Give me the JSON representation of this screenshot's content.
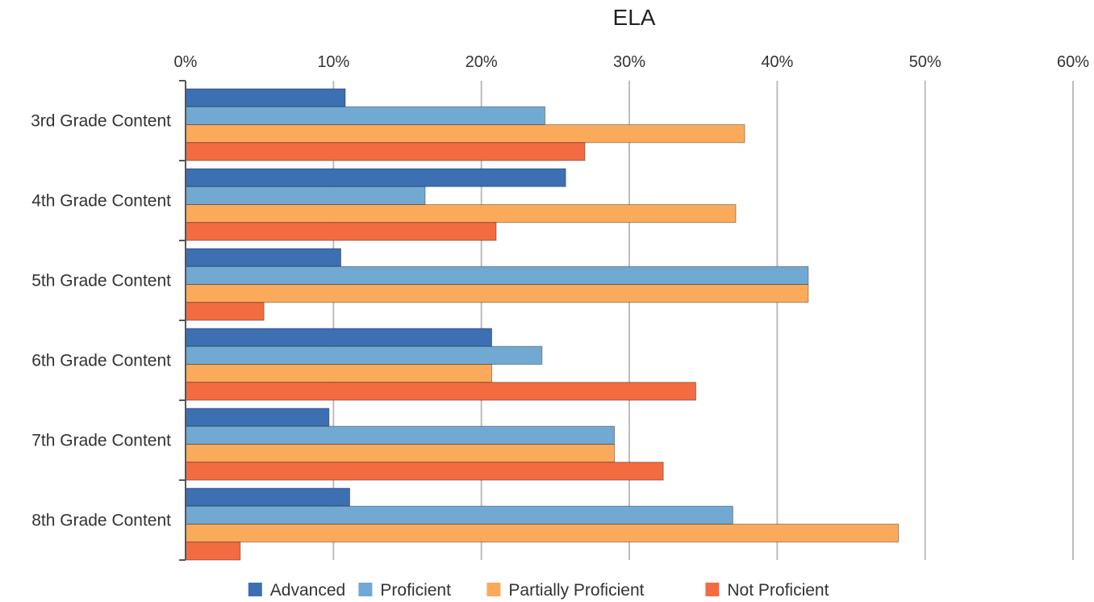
{
  "chart_data": {
    "type": "bar",
    "orientation": "horizontal",
    "title": "ELA",
    "xlabel": "",
    "ylabel": "",
    "xlim": [
      0,
      60
    ],
    "x_ticks": [
      "0%",
      "10%",
      "20%",
      "30%",
      "40%",
      "50%",
      "60%"
    ],
    "grid": true,
    "legend_position": "bottom",
    "categories": [
      "3rd Grade Content",
      "4th Grade Content",
      "5th Grade Content",
      "6th Grade Content",
      "7th Grade Content",
      "8th Grade Content"
    ],
    "series": [
      {
        "name": "Advanced",
        "color": "#3d6fb3",
        "values": [
          10.8,
          25.7,
          10.5,
          20.7,
          9.7,
          11.1
        ]
      },
      {
        "name": "Proficient",
        "color": "#71a9d3",
        "values": [
          24.3,
          16.2,
          42.1,
          24.1,
          29.0,
          37.0
        ]
      },
      {
        "name": "Partially Proficient",
        "color": "#fbaa5c",
        "values": [
          37.8,
          37.2,
          42.1,
          20.7,
          29.0,
          48.2
        ]
      },
      {
        "name": "Not Proficient",
        "color": "#f36c41",
        "values": [
          27.0,
          21.0,
          5.3,
          34.5,
          32.3,
          3.7
        ]
      }
    ]
  }
}
